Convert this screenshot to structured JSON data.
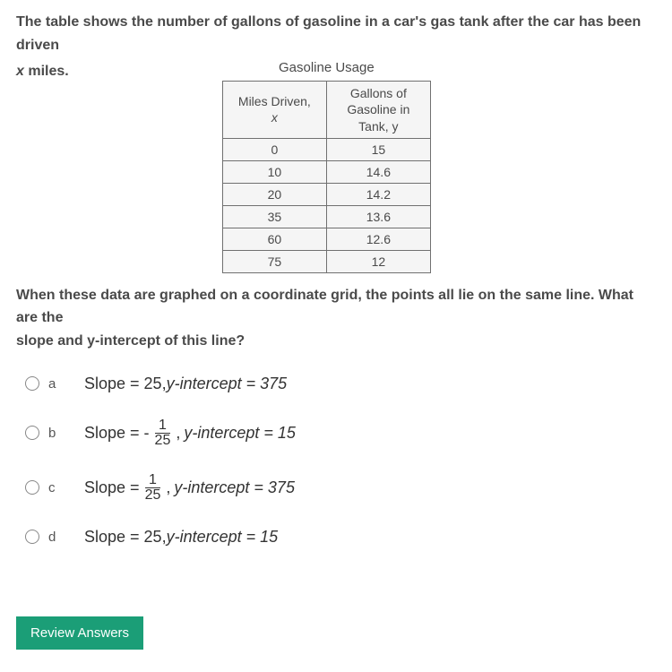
{
  "question": {
    "line1": "The table shows the number of gallons of gasoline in a car's gas tank after the car has been driven",
    "line2_prefix": "x",
    "line2_suffix": " miles."
  },
  "table": {
    "title": "Gasoline Usage",
    "header1_line1": "Miles Driven,",
    "header1_line2": "x",
    "header2_line1": "Gallons of",
    "header2_line2": "Gasoline in",
    "header2_line3": "Tank, y",
    "rows": [
      {
        "x": "0",
        "y": "15"
      },
      {
        "x": "10",
        "y": "14.6"
      },
      {
        "x": "20",
        "y": "14.2"
      },
      {
        "x": "35",
        "y": "13.6"
      },
      {
        "x": "60",
        "y": "12.6"
      },
      {
        "x": "75",
        "y": "12"
      }
    ]
  },
  "followup": {
    "line1": "When these data are graphed on a coordinate grid, the points all lie on the same line. What are the",
    "line2": "slope and y-intercept of this line?"
  },
  "options": {
    "a": {
      "label": "a",
      "text_before": "Slope = 25, ",
      "yint": "y-intercept = 375"
    },
    "b": {
      "label": "b",
      "text_before": "Slope = - ",
      "frac_num": "1",
      "frac_den": "25",
      "text_after": ", ",
      "yint": "y-intercept = 15"
    },
    "c": {
      "label": "c",
      "text_before": "Slope = ",
      "frac_num": "1",
      "frac_den": "25",
      "text_after": ", ",
      "yint": "y-intercept = 375"
    },
    "d": {
      "label": "d",
      "text_before": "Slope = 25, ",
      "yint": "y-intercept = 15"
    }
  },
  "button": {
    "label": "Review Answers"
  }
}
